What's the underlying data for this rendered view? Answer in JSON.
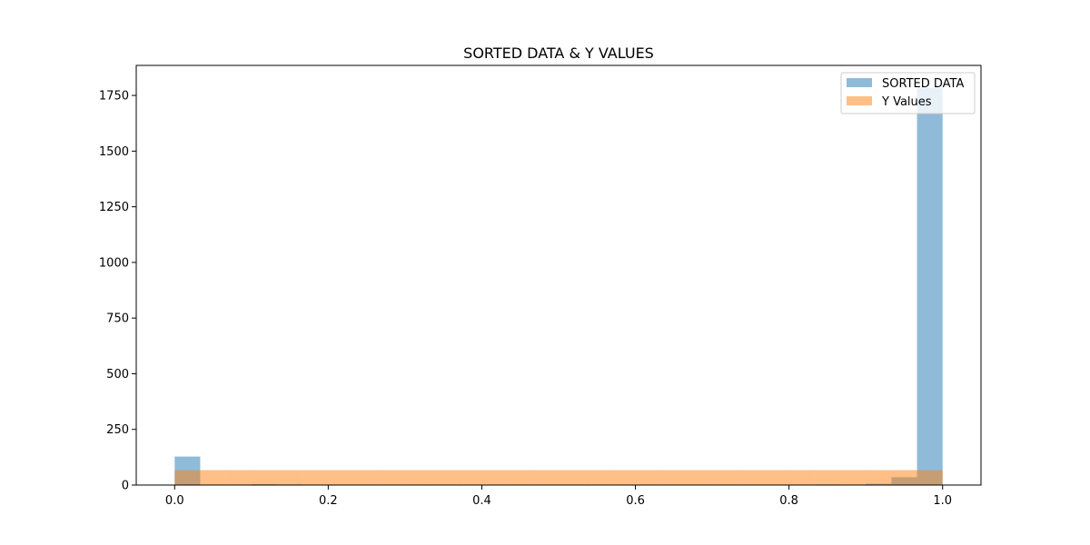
{
  "chart_data": {
    "type": "bar",
    "title": "SORTED DATA & Y VALUES",
    "xlabel": "",
    "ylabel": "",
    "xlim": [
      -0.05,
      1.05
    ],
    "ylim": [
      0,
      1885
    ],
    "xticks": [
      "0.0",
      "0.2",
      "0.4",
      "0.6",
      "0.8",
      "1.0"
    ],
    "yticks": [
      "0",
      "250",
      "500",
      "750",
      "1000",
      "1250",
      "1500",
      "1750"
    ],
    "grid": false,
    "legend_position": "top-right",
    "bin_edges": [
      0.0,
      0.0333,
      0.0667,
      0.1,
      0.1333,
      0.1667,
      0.2,
      0.2333,
      0.2667,
      0.3,
      0.3333,
      0.3667,
      0.4,
      0.4333,
      0.4667,
      0.5,
      0.5333,
      0.5667,
      0.6,
      0.6333,
      0.6667,
      0.7,
      0.7333,
      0.7667,
      0.8,
      0.8333,
      0.8667,
      0.9,
      0.9333,
      0.9667,
      1.0
    ],
    "series": [
      {
        "name": "SORTED DATA",
        "color": "#1f77b4",
        "alpha": 0.5,
        "values": [
          128,
          0,
          0,
          4,
          3,
          0,
          0,
          0,
          0,
          0,
          2,
          0,
          0,
          0,
          0,
          0,
          0,
          0,
          0,
          0,
          0,
          0,
          0,
          0,
          0,
          3,
          0,
          6,
          35,
          1785
        ]
      },
      {
        "name": "Y Values",
        "color": "#ff7f0e",
        "alpha": 0.5,
        "values": [
          67,
          67,
          67,
          67,
          67,
          67,
          67,
          67,
          67,
          67,
          67,
          67,
          67,
          67,
          67,
          67,
          67,
          67,
          67,
          67,
          67,
          67,
          67,
          67,
          67,
          67,
          67,
          67,
          67,
          67
        ]
      }
    ]
  }
}
